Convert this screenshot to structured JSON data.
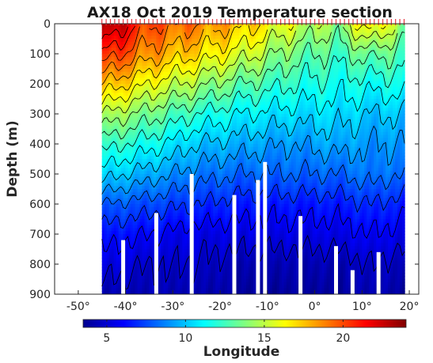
{
  "chart_data": {
    "type": "heatmap",
    "title": "AX18 Oct 2019 Temperature section",
    "xlabel": "Longitude",
    "ylabel": "Depth (m)",
    "xlim": [
      -55,
      22
    ],
    "ylim": [
      900,
      0
    ],
    "x_ticks": [
      "-50°",
      "-40°",
      "-30°",
      "-20°",
      "-10°",
      "0°",
      "10°",
      "20°"
    ],
    "x_tick_values": [
      -50,
      -40,
      -30,
      -20,
      -10,
      0,
      10,
      20
    ],
    "y_ticks": [
      "0",
      "100",
      "200",
      "300",
      "400",
      "500",
      "600",
      "700",
      "800",
      "900"
    ],
    "y_tick_values": [
      0,
      100,
      200,
      300,
      400,
      500,
      600,
      700,
      800,
      900
    ],
    "colorbar": {
      "range": [
        3.5,
        24
      ],
      "ticks": [
        "5",
        "10",
        "15",
        "20"
      ],
      "tick_values": [
        5,
        10,
        15,
        20
      ],
      "colormap": "jet"
    },
    "data_extent_lon": [
      -45,
      19
    ],
    "station_marker_color": "#e6363f",
    "contour_color": "#000000",
    "profiles": [
      {
        "lon": -45,
        "temps": [
          24,
          21,
          18,
          15,
          12.5,
          10.5,
          8,
          6.5,
          5.5,
          4.5
        ]
      },
      {
        "lon": -35,
        "temps": [
          20,
          18.5,
          16,
          13.5,
          11.5,
          9.5,
          7.5,
          6,
          5,
          4.5
        ]
      },
      {
        "lon": -25,
        "temps": [
          19,
          17,
          14.5,
          12,
          10,
          8.5,
          7,
          5.5,
          5,
          4.5
        ]
      },
      {
        "lon": -15,
        "temps": [
          17.5,
          15.5,
          13,
          11,
          9.5,
          8,
          6.5,
          5.5,
          4.5,
          4
        ]
      },
      {
        "lon": -5,
        "temps": [
          15.5,
          13.5,
          12,
          10.5,
          9,
          8,
          6.5,
          5.5,
          4.5,
          4
        ]
      },
      {
        "lon": 5,
        "temps": [
          14,
          12.5,
          11.5,
          10.5,
          9.5,
          8,
          6.5,
          5.5,
          4.5,
          4
        ]
      },
      {
        "lon": 12,
        "temps": [
          17,
          13.5,
          11.5,
          10,
          9,
          8.5,
          7,
          6,
          5,
          4.5
        ]
      },
      {
        "lon": 19,
        "temps": [
          14,
          12.5,
          11.5,
          10,
          9,
          8,
          6.5,
          5.5,
          4.5,
          4
        ]
      }
    ],
    "bottom_gaps": [
      {
        "lon": -40.5,
        "top": 720
      },
      {
        "lon": -33.5,
        "top": 630
      },
      {
        "lon": -26,
        "top": 500
      },
      {
        "lon": -17,
        "top": 570
      },
      {
        "lon": -12,
        "top": 520
      },
      {
        "lon": -10.5,
        "top": 460
      },
      {
        "lon": -3,
        "top": 640
      },
      {
        "lon": 4.5,
        "top": 740
      },
      {
        "lon": 8,
        "top": 820
      },
      {
        "lon": 13.5,
        "top": 760
      }
    ]
  }
}
